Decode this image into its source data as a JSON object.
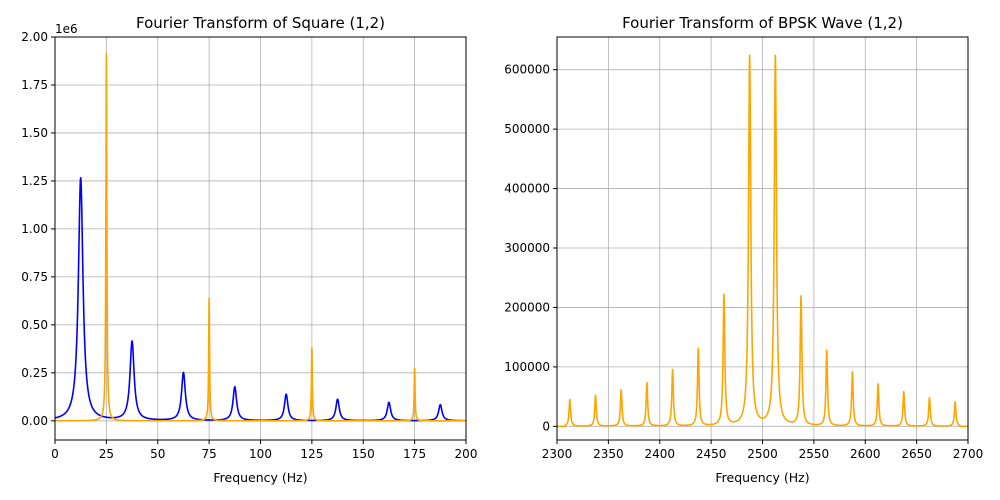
{
  "chart_data": [
    {
      "type": "line",
      "title": "Fourier Transform of Square (1,2)",
      "xlabel": "Frequency (Hz)",
      "ylabel": "",
      "xlim": [
        0,
        200
      ],
      "ylim": [
        -100000,
        2000000
      ],
      "y_offset_text": "1e6",
      "xticks": [
        0,
        25,
        50,
        75,
        100,
        125,
        150,
        175,
        200
      ],
      "xtick_labels": [
        "0",
        "25",
        "50",
        "75",
        "100",
        "125",
        "150",
        "175",
        "200"
      ],
      "yticks": [
        0,
        250000,
        500000,
        750000,
        1000000,
        1250000,
        1500000,
        1750000,
        2000000
      ],
      "ytick_labels": [
        "0.00",
        "0.25",
        "0.50",
        "0.75",
        "1.00",
        "1.25",
        "1.50",
        "1.75",
        "2.00"
      ],
      "grid": true,
      "series": [
        {
          "color": "#0000ff",
          "width": 1.6,
          "kind": "broad",
          "baseline": 0,
          "peaks": [
            {
              "x": 12.5,
              "y": 1265000,
              "w": 1.35
            },
            {
              "x": 37.5,
              "y": 412000,
              "w": 1.2
            },
            {
              "x": 62.5,
              "y": 250000,
              "w": 1.1
            },
            {
              "x": 87.5,
              "y": 176000,
              "w": 1.05
            },
            {
              "x": 112.5,
              "y": 138000,
              "w": 1.0
            },
            {
              "x": 137.5,
              "y": 112000,
              "w": 1.0
            },
            {
              "x": 162.5,
              "y": 96000,
              "w": 1.0
            },
            {
              "x": 187.5,
              "y": 84000,
              "w": 1.0
            }
          ]
        },
        {
          "color": "#ffa500",
          "width": 1.6,
          "kind": "narrow",
          "baseline": 0,
          "peaks": [
            {
              "x": 25,
              "y": 1915000,
              "w": 0.28
            },
            {
              "x": 75,
              "y": 638000,
              "w": 0.26
            },
            {
              "x": 125,
              "y": 383000,
              "w": 0.26
            },
            {
              "x": 175,
              "y": 274000,
              "w": 0.26
            }
          ]
        }
      ]
    },
    {
      "type": "line",
      "title": "Fourier Transform of BPSK Wave (1,2)",
      "xlabel": "Frequency (Hz)",
      "ylabel": "",
      "xlim": [
        2300,
        2700
      ],
      "ylim": [
        -23000,
        655000
      ],
      "xticks": [
        2300,
        2350,
        2400,
        2450,
        2500,
        2550,
        2600,
        2650,
        2700
      ],
      "xtick_labels": [
        "2300",
        "2350",
        "2400",
        "2450",
        "2500",
        "2550",
        "2600",
        "2650",
        "2700"
      ],
      "yticks": [
        0,
        100000,
        200000,
        300000,
        400000,
        500000,
        600000
      ],
      "ytick_labels": [
        "0",
        "100000",
        "200000",
        "300000",
        "400000",
        "500000",
        "600000"
      ],
      "grid": true,
      "series": [
        {
          "color": "#ffa500",
          "width": 1.6,
          "kind": "bpsk",
          "baseline": 0,
          "band": [
            2308,
            2692
          ],
          "peaks": [
            {
              "x": 2312.5,
              "y": 45000,
              "w": 0.9
            },
            {
              "x": 2337.5,
              "y": 52000,
              "w": 0.9
            },
            {
              "x": 2362.5,
              "y": 61000,
              "w": 0.9
            },
            {
              "x": 2387.5,
              "y": 73000,
              "w": 0.9
            },
            {
              "x": 2412.5,
              "y": 95000,
              "w": 0.9
            },
            {
              "x": 2437.5,
              "y": 130000,
              "w": 0.9
            },
            {
              "x": 2462.5,
              "y": 220000,
              "w": 1.0
            },
            {
              "x": 2487.5,
              "y": 622000,
              "w": 1.3
            },
            {
              "x": 2512.5,
              "y": 622000,
              "w": 1.3
            },
            {
              "x": 2537.5,
              "y": 217000,
              "w": 1.0
            },
            {
              "x": 2562.5,
              "y": 127000,
              "w": 0.9
            },
            {
              "x": 2587.5,
              "y": 91000,
              "w": 0.9
            },
            {
              "x": 2612.5,
              "y": 71000,
              "w": 0.9
            },
            {
              "x": 2637.5,
              "y": 58000,
              "w": 0.9
            },
            {
              "x": 2662.5,
              "y": 48000,
              "w": 0.9
            },
            {
              "x": 2687.5,
              "y": 41000,
              "w": 0.9
            }
          ]
        }
      ]
    }
  ]
}
